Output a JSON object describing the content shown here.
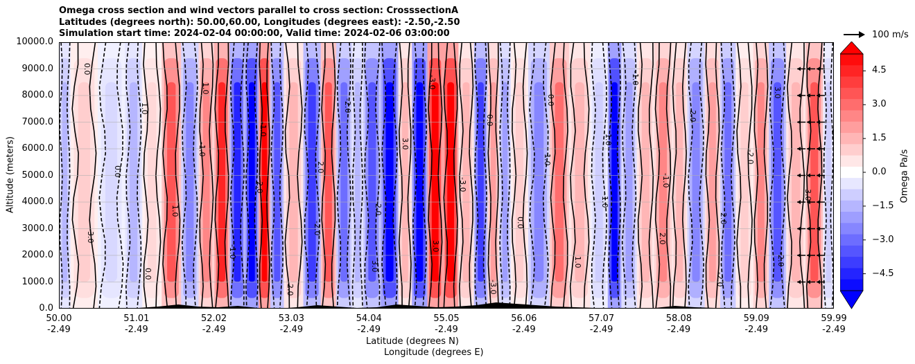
{
  "chart_data": {
    "type": "heatmap",
    "title_lines": [
      "Omega cross section and wind vectors parallel to cross section: CrosssectionA",
      "Latitudes (degrees north): 50.00,60.00, Longitudes (degrees east): -2.50,-2.50",
      "Simulation start time: 2024-02-04 00:00:00, Valid time: 2024-02-06 03:00:00"
    ],
    "ylabel": "Altitude (meters)",
    "xlabel_lines": [
      "Latitude (degrees N)",
      "Longitude (degrees E)"
    ],
    "ylim": [
      0,
      10000
    ],
    "yticks": [
      "0.0",
      "1000.0",
      "2000.0",
      "3000.0",
      "4000.0",
      "5000.0",
      "6000.0",
      "7000.0",
      "8000.0",
      "9000.0",
      "10000.0"
    ],
    "xticks": [
      {
        "lat": "50.00",
        "lon": "-2.49"
      },
      {
        "lat": "51.01",
        "lon": "-2.49"
      },
      {
        "lat": "52.02",
        "lon": "-2.49"
      },
      {
        "lat": "53.03",
        "lon": "-2.49"
      },
      {
        "lat": "54.04",
        "lon": "-2.49"
      },
      {
        "lat": "55.05",
        "lon": "-2.49"
      },
      {
        "lat": "56.06",
        "lon": "-2.49"
      },
      {
        "lat": "57.07",
        "lon": "-2.49"
      },
      {
        "lat": "58.08",
        "lon": "-2.49"
      },
      {
        "lat": "59.09",
        "lon": "-2.49"
      },
      {
        "lat": "59.99",
        "lon": "-2.49"
      }
    ],
    "grid": true,
    "colormap": "bwr",
    "colorbar": {
      "label": "Omega Pa/s",
      "range": [
        -5.25,
        5.25
      ],
      "ticks": [
        "4.5",
        "3.0",
        "1.5",
        "0.0",
        "−1.5",
        "−3.0",
        "−4.5"
      ]
    },
    "quiver_key": "100 m/s",
    "contour_labels": [
      "0.0",
      "1.0",
      "-1.0",
      "2.0",
      "-2.0",
      "3.0",
      "-3.0"
    ],
    "omega_columns": {
      "x": [
        50.05,
        50.25,
        50.75,
        50.95,
        51.2,
        51.45,
        51.7,
        51.9,
        52.1,
        52.3,
        52.5,
        52.65,
        52.8,
        53.0,
        53.3,
        53.45,
        53.7,
        53.85,
        54.0,
        54.3,
        54.45,
        54.65,
        54.85,
        55.05,
        55.25,
        55.45,
        55.6,
        55.75,
        55.9,
        56.2,
        56.45,
        56.7,
        57.0,
        57.15,
        57.35,
        57.55,
        57.8,
        58.0,
        58.2,
        58.45,
        58.6,
        58.85,
        59.05,
        59.25,
        59.5,
        59.75,
        59.95
      ],
      "omega_peak": [
        -1.5,
        1.0,
        -0.8,
        -1.5,
        0.8,
        3.5,
        -2.5,
        2.5,
        4.5,
        -4.5,
        -5.5,
        5.5,
        -3.5,
        1.5,
        -4.0,
        3.5,
        -3.0,
        -1.5,
        -3.5,
        -5.5,
        1.5,
        -5.5,
        5.5,
        5.5,
        1.5,
        -4.0,
        2.0,
        -2.0,
        1.0,
        -2.5,
        3.0,
        1.5,
        -1.0,
        -5.5,
        -2.0,
        1.5,
        2.5,
        1.5,
        -2.5,
        2.0,
        -3.0,
        1.0,
        2.5,
        -3.5,
        1.5,
        3.5,
        -1.0
      ]
    }
  }
}
